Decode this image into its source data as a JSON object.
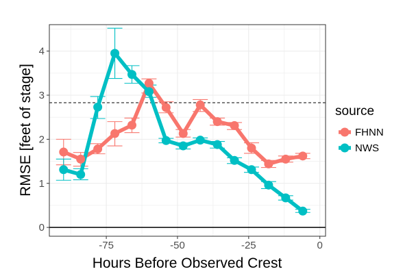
{
  "chart_data": {
    "type": "line",
    "title": "",
    "xlabel": "Hours Before Observed Crest",
    "ylabel": "RMSE [feet of stage]",
    "xlim": [
      -95,
      2
    ],
    "ylim": [
      -0.2,
      4.6
    ],
    "xticks": [
      -75,
      -50,
      -25,
      0
    ],
    "xtick_labels": [
      "-75",
      "-50",
      "-25",
      "0"
    ],
    "yticks": [
      0,
      1,
      2,
      3,
      4
    ],
    "ytick_labels": [
      "0",
      "1",
      "2",
      "3",
      "4"
    ],
    "grid": true,
    "reference_lines": [
      {
        "y": 2.83,
        "style": "dashed",
        "color": "#000000"
      },
      {
        "y": 0,
        "style": "solid",
        "color": "#000000"
      }
    ],
    "legend": {
      "title": "source",
      "position": "right"
    },
    "series": [
      {
        "name": "FHNN",
        "color": "#F8766D",
        "x": [
          -90,
          -84,
          -78,
          -72,
          -66,
          -60,
          -54,
          -48,
          -42,
          -36,
          -30,
          -24,
          -18,
          -12,
          -6
        ],
        "y": [
          1.71,
          1.55,
          1.78,
          2.13,
          2.32,
          3.27,
          2.72,
          2.13,
          2.78,
          2.4,
          2.31,
          1.8,
          1.44,
          1.55,
          1.62
        ],
        "err_low": [
          1.42,
          1.39,
          1.67,
          1.85,
          2.15,
          3.05,
          2.6,
          2.05,
          2.63,
          2.32,
          2.22,
          1.68,
          1.36,
          1.48,
          1.56
        ],
        "err_high": [
          2.0,
          1.7,
          1.9,
          2.4,
          2.48,
          3.37,
          2.85,
          2.22,
          2.9,
          2.48,
          2.38,
          1.92,
          1.52,
          1.62,
          1.68
        ]
      },
      {
        "name": "NWS",
        "color": "#00BFC4",
        "x": [
          -90,
          -84,
          -78,
          -72,
          -66,
          -60,
          -54,
          -48,
          -42,
          -36,
          -30,
          -24,
          -18,
          -12,
          -6
        ],
        "y": [
          1.31,
          1.2,
          2.73,
          3.95,
          3.47,
          3.08,
          1.97,
          1.85,
          1.98,
          1.88,
          1.52,
          1.31,
          0.96,
          0.67,
          0.37
        ],
        "err_low": [
          1.07,
          1.08,
          2.47,
          3.38,
          3.27,
          2.95,
          1.92,
          1.78,
          1.93,
          1.8,
          1.45,
          1.25,
          0.88,
          0.62,
          0.34
        ],
        "err_high": [
          1.55,
          1.33,
          2.97,
          4.52,
          3.67,
          3.23,
          2.02,
          1.92,
          2.03,
          1.95,
          1.58,
          1.37,
          1.04,
          0.72,
          0.41
        ]
      }
    ]
  }
}
